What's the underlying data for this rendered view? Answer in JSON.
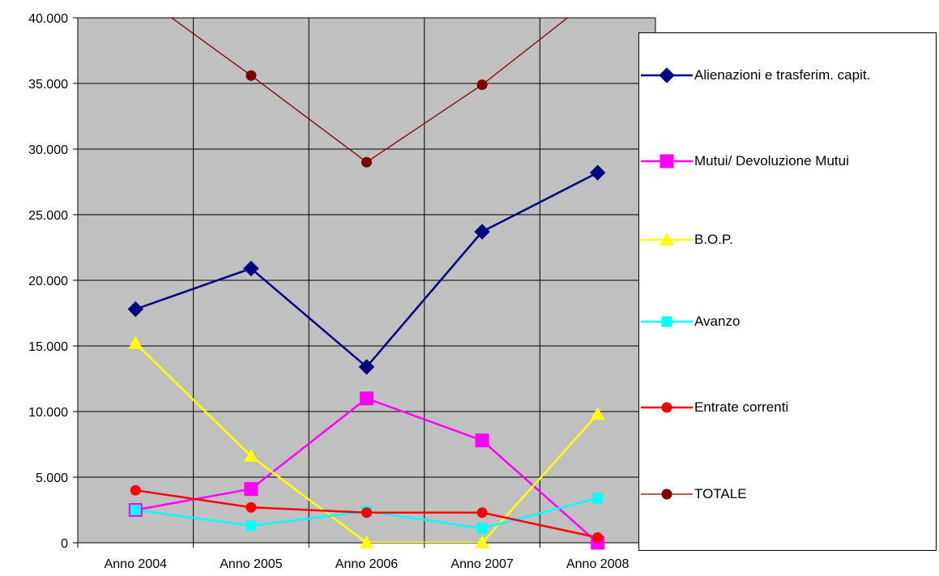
{
  "chart_data": {
    "type": "line",
    "categories": [
      "Anno 2004",
      "Anno 2005",
      "Anno 2006",
      "Anno 2007",
      "Anno 2008"
    ],
    "ylim": [
      0,
      40000
    ],
    "yticks": [
      0,
      5000,
      10000,
      15000,
      20000,
      25000,
      30000,
      35000,
      40000
    ],
    "ytick_labels": [
      "0",
      "5.000",
      "10.000",
      "15.000",
      "20.000",
      "25.000",
      "30.000",
      "35.000",
      "40.000"
    ],
    "grid": true,
    "legend_position": "right",
    "series": [
      {
        "name": "Alienazioni e trasferim. capit.",
        "color": "#000080",
        "marker": "diamond",
        "values": [
          17800,
          20900,
          13400,
          23700,
          28200
        ]
      },
      {
        "name": "Mutui/ Devoluzione Mutui",
        "color": "#FF00FF",
        "marker": "square",
        "values": [
          2500,
          4100,
          11000,
          7800,
          0
        ]
      },
      {
        "name": "B.O.P.",
        "color": "#FFFF00",
        "marker": "triangle",
        "values": [
          15200,
          6600,
          0,
          0,
          9800
        ]
      },
      {
        "name": "Avanzo",
        "color": "#00FFFF",
        "marker": "square-small",
        "values": [
          2500,
          1300,
          2400,
          1100,
          3400
        ]
      },
      {
        "name": "Entrate correnti",
        "color": "#FF0000",
        "marker": "circle",
        "values": [
          4000,
          2700,
          2300,
          2300,
          400
        ]
      },
      {
        "name": "TOTALE",
        "color": "#800000",
        "marker": "circle",
        "values": [
          42000,
          35600,
          29000,
          34900,
          41800
        ]
      }
    ]
  }
}
